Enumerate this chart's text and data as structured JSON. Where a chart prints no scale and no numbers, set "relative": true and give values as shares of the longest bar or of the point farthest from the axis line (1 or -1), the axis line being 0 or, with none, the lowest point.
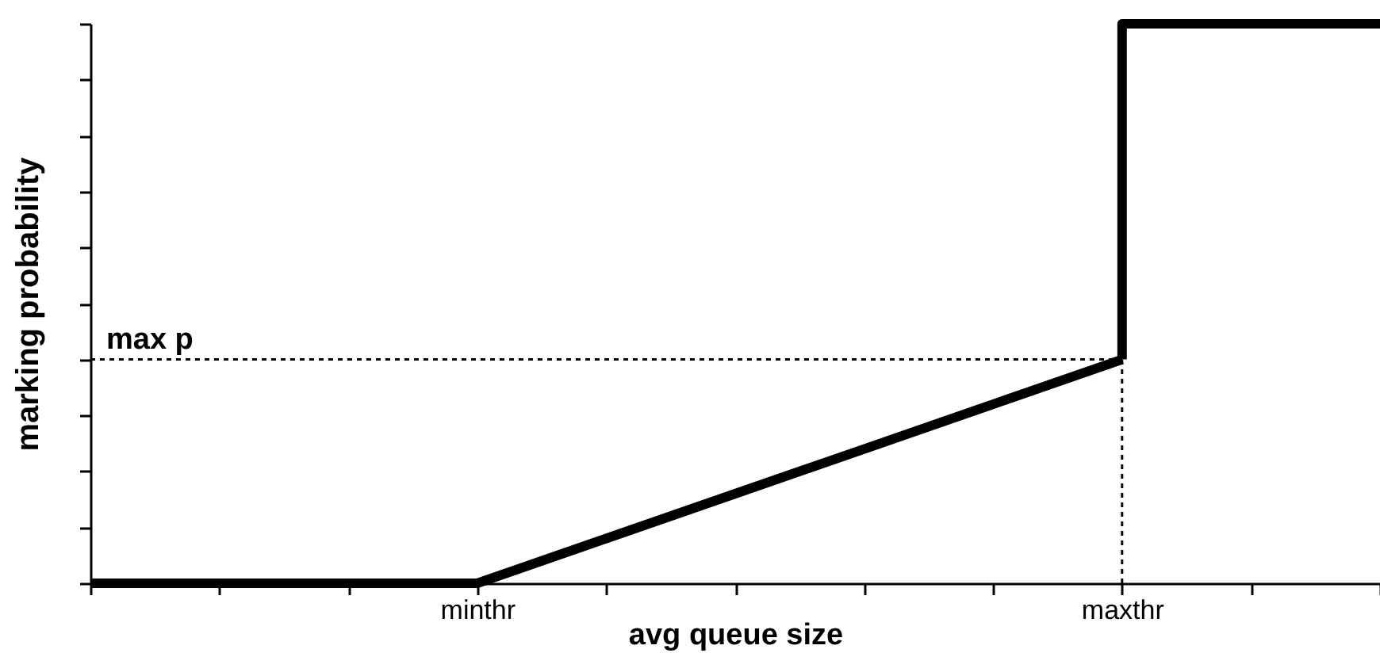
{
  "chart_data": {
    "type": "line",
    "xlabel": "avg queue size",
    "ylabel": "marking probability",
    "relative": true,
    "categories": [
      null,
      null,
      null,
      "minthr",
      null,
      null,
      null,
      null,
      "maxthr",
      null,
      null
    ],
    "series": [
      {
        "color": "#000000",
        "values": [
          0,
          0,
          0,
          0,
          0.08,
          0.16,
          0.24,
          0.32,
          0.4,
          null,
          null
        ]
      },
      {
        "type": "step",
        "color": "#000000",
        "values": [
          null,
          null,
          null,
          null,
          null,
          null,
          null,
          null,
          0.4,
          1,
          1
        ]
      }
    ],
    "ref_lines": [
      {
        "axis": "y",
        "value": 0.4,
        "label": "max p",
        "line_style": "dotted",
        "color": "#000000"
      },
      {
        "axis": "x",
        "value": "maxthr",
        "line_style": "dotted",
        "color": "#000000"
      }
    ],
    "grid": false,
    "marker": "none",
    "line_style": "solid"
  }
}
